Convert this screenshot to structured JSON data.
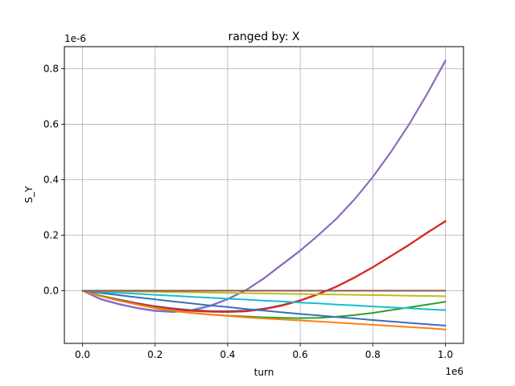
{
  "chart_data": {
    "type": "line",
    "title": "ranged by: X",
    "xlabel": "turn",
    "ylabel": "S_Y",
    "x_offset_label": "1e6",
    "y_offset_label": "1e-6",
    "xlim": [
      -0.05,
      1.05
    ],
    "ylim": [
      -0.19,
      0.88
    ],
    "x_ticks": [
      0.0,
      0.2,
      0.4,
      0.6,
      0.8,
      1.0
    ],
    "x_tick_labels": [
      "0.0",
      "0.2",
      "0.4",
      "0.6",
      "0.8",
      "1.0"
    ],
    "y_ticks": [
      0.0,
      0.2,
      0.4,
      0.6,
      0.8
    ],
    "y_tick_labels": [
      "0.0",
      "0.2",
      "0.4",
      "0.6",
      "0.8"
    ],
    "grid": true,
    "legend": "none",
    "x": [
      0.0,
      0.05,
      0.1,
      0.15,
      0.2,
      0.25,
      0.3,
      0.35,
      0.4,
      0.45,
      0.5,
      0.55,
      0.6,
      0.65,
      0.7,
      0.75,
      0.8,
      0.85,
      0.9,
      0.95,
      1.0
    ],
    "series": [
      {
        "color": "#4878d0",
        "values": [
          0.0,
          -0.03,
          -0.048,
          -0.062,
          -0.072,
          -0.076,
          -0.07,
          -0.055,
          -0.03,
          0.002,
          0.045,
          0.095,
          0.145,
          0.2,
          0.26,
          0.33,
          0.41,
          0.5,
          0.6,
          0.71,
          0.83
        ]
      },
      {
        "color": "#9467bd",
        "values": [
          0.0,
          -0.031,
          -0.049,
          -0.063,
          -0.073,
          -0.077,
          -0.071,
          -0.056,
          -0.031,
          0.001,
          0.044,
          0.094,
          0.144,
          0.2,
          0.26,
          0.33,
          0.41,
          0.5,
          0.6,
          0.71,
          0.828
        ]
      },
      {
        "color": "#1f77b4",
        "values": [
          0.0,
          -0.018,
          -0.032,
          -0.045,
          -0.056,
          -0.064,
          -0.07,
          -0.073,
          -0.074,
          -0.072,
          -0.065,
          -0.052,
          -0.035,
          -0.012,
          0.015,
          0.048,
          0.085,
          0.125,
          0.165,
          0.21,
          0.25
        ]
      },
      {
        "color": "#ff4500",
        "values": [
          0.0,
          -0.019,
          -0.034,
          -0.047,
          -0.058,
          -0.067,
          -0.073,
          -0.076,
          -0.077,
          -0.075,
          -0.067,
          -0.054,
          -0.036,
          -0.013,
          0.014,
          0.047,
          0.084,
          0.124,
          0.165,
          0.208,
          0.252
        ]
      },
      {
        "color": "#d62728",
        "values": [
          0.0,
          -0.018,
          -0.033,
          -0.046,
          -0.057,
          -0.066,
          -0.072,
          -0.075,
          -0.076,
          -0.074,
          -0.066,
          -0.053,
          -0.035,
          -0.012,
          0.015,
          0.048,
          0.085,
          0.125,
          0.166,
          0.209,
          0.25
        ]
      },
      {
        "color": "#2ca02c",
        "values": [
          0.0,
          -0.018,
          -0.035,
          -0.05,
          -0.063,
          -0.073,
          -0.08,
          -0.086,
          -0.09,
          -0.093,
          -0.096,
          -0.098,
          -0.099,
          -0.098,
          -0.094,
          -0.088,
          -0.08,
          -0.07,
          -0.06,
          -0.05,
          -0.04
        ]
      },
      {
        "color": "#ff7f0e",
        "values": [
          0.0,
          -0.02,
          -0.036,
          -0.05,
          -0.062,
          -0.072,
          -0.08,
          -0.086,
          -0.091,
          -0.096,
          -0.1,
          -0.104,
          -0.107,
          -0.111,
          -0.115,
          -0.119,
          -0.123,
          -0.127,
          -0.131,
          -0.135,
          -0.14
        ]
      },
      {
        "color": "#3a6fb5",
        "values": [
          0.0,
          -0.008,
          -0.016,
          -0.024,
          -0.031,
          -0.039,
          -0.046,
          -0.053,
          -0.059,
          -0.066,
          -0.072,
          -0.078,
          -0.084,
          -0.089,
          -0.095,
          -0.1,
          -0.106,
          -0.111,
          -0.116,
          -0.121,
          -0.126
        ]
      },
      {
        "color": "#17becf",
        "values": [
          0.0,
          -0.004,
          -0.008,
          -0.011,
          -0.015,
          -0.018,
          -0.022,
          -0.025,
          -0.029,
          -0.032,
          -0.036,
          -0.039,
          -0.043,
          -0.046,
          -0.05,
          -0.053,
          -0.057,
          -0.06,
          -0.063,
          -0.067,
          -0.07
        ]
      },
      {
        "color": "#bcbd22",
        "values": [
          0.0,
          -0.001,
          -0.002,
          -0.003,
          -0.004,
          -0.005,
          -0.006,
          -0.007,
          -0.008,
          -0.009,
          -0.01,
          -0.011,
          -0.012,
          -0.013,
          -0.014,
          -0.015,
          -0.016,
          -0.017,
          -0.018,
          -0.019,
          -0.02
        ]
      },
      {
        "color": "#8c564b",
        "values": [
          0.0,
          0.0,
          0.0,
          0.0,
          0.0,
          0.0,
          0.0,
          0.0,
          0.0,
          0.0,
          0.0,
          0.0,
          0.0,
          0.0,
          0.0,
          0.0,
          0.0,
          0.0,
          0.0,
          0.0,
          0.0
        ]
      }
    ]
  }
}
